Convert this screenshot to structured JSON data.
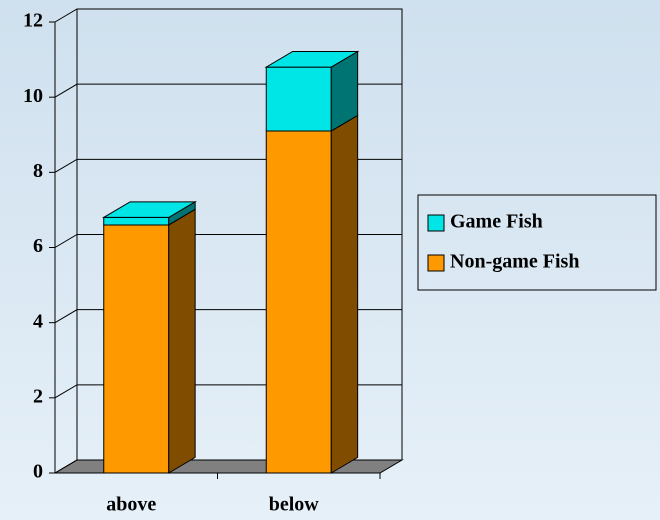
{
  "chart_data": {
    "type": "bar3d_stacked",
    "categories": [
      "above",
      "below"
    ],
    "series": [
      {
        "name": "Non-game Fish",
        "color": "#ff9900",
        "values": [
          6.6,
          9.1
        ]
      },
      {
        "name": "Game Fish",
        "color": "#00e6e6",
        "values": [
          0.2,
          1.7
        ]
      }
    ],
    "ylim": [
      0,
      12
    ],
    "yticks": [
      0,
      2,
      4,
      6,
      8,
      10,
      12
    ],
    "grid": true,
    "legend": "right"
  }
}
